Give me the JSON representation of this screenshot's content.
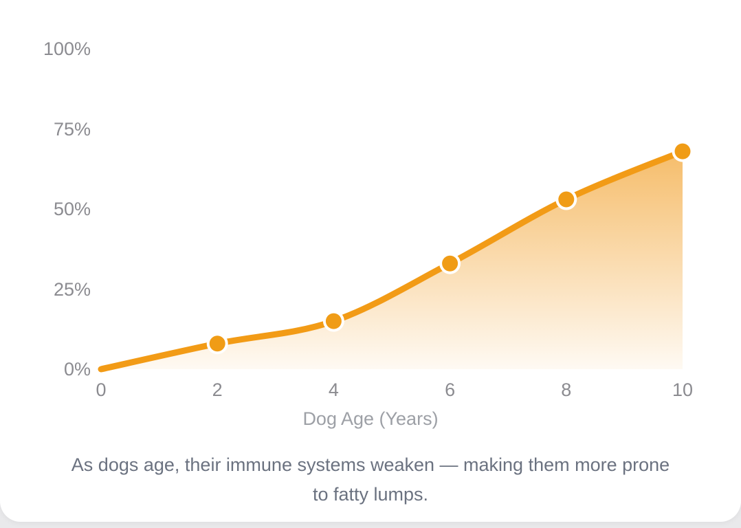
{
  "window": {
    "background_color": "#e9e9eb",
    "card_color": "#ffffff"
  },
  "chart_data": {
    "type": "area",
    "title": "",
    "xlabel": "Dog Age (Years)",
    "ylabel": "",
    "x": [
      0,
      2,
      4,
      6,
      8,
      10
    ],
    "values": [
      0,
      8,
      15,
      33,
      53,
      68
    ],
    "unit": "%",
    "xlim": [
      0,
      10
    ],
    "ylim": [
      0,
      100
    ],
    "grid": false,
    "legend": "none",
    "x_ticks": [
      {
        "value": 0,
        "label": "0"
      },
      {
        "value": 2,
        "label": "2"
      },
      {
        "value": 4,
        "label": "4"
      },
      {
        "value": 6,
        "label": "6"
      },
      {
        "value": 8,
        "label": "8"
      },
      {
        "value": 10,
        "label": "10"
      }
    ],
    "y_ticks": [
      {
        "value": 0,
        "label": "0%"
      },
      {
        "value": 25,
        "label": "25%"
      },
      {
        "value": 50,
        "label": "50%"
      },
      {
        "value": 75,
        "label": "75%"
      },
      {
        "value": 100,
        "label": "100%"
      }
    ],
    "line_color": "#F29B16",
    "marker_fill": "#F09C16",
    "marker_ring": "#FFFFFF",
    "area_gradient_color": "#F0940F",
    "area_gradient_top_opacity": 0.62,
    "area_gradient_bottom_opacity": 0.05
  },
  "caption": {
    "text": "As dogs age, their immune systems weaken — making them more prone to fatty lumps.",
    "line1": "As dogs age, their immune systems weaken — making them more prone",
    "line2": "to fatty lumps."
  }
}
